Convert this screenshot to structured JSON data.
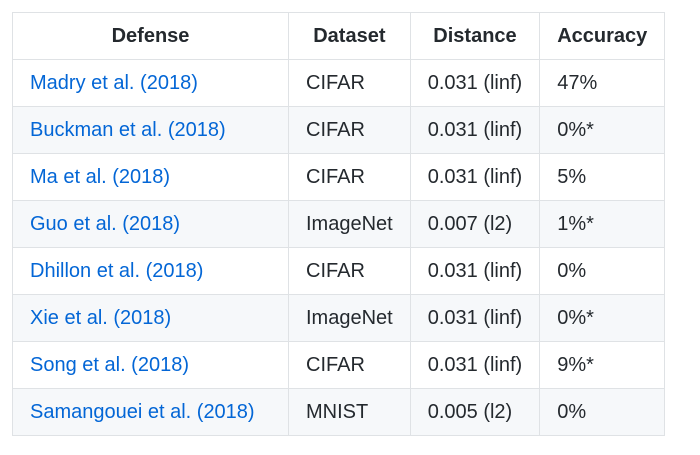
{
  "table": {
    "headers": {
      "defense": "Defense",
      "dataset": "Dataset",
      "distance": "Distance",
      "accuracy": "Accuracy"
    },
    "rows": [
      {
        "defense": "Madry et al. (2018)",
        "dataset": "CIFAR",
        "distance": "0.031 (linf)",
        "accuracy": "47%"
      },
      {
        "defense": "Buckman et al. (2018)",
        "dataset": "CIFAR",
        "distance": "0.031 (linf)",
        "accuracy": "0%*"
      },
      {
        "defense": "Ma et al. (2018)",
        "dataset": "CIFAR",
        "distance": "0.031 (linf)",
        "accuracy": "5%"
      },
      {
        "defense": "Guo et al. (2018)",
        "dataset": "ImageNet",
        "distance": "0.007 (l2)",
        "accuracy": "1%*"
      },
      {
        "defense": "Dhillon et al. (2018)",
        "dataset": "CIFAR",
        "distance": "0.031 (linf)",
        "accuracy": "0%"
      },
      {
        "defense": "Xie et al. (2018)",
        "dataset": "ImageNet",
        "distance": "0.031 (linf)",
        "accuracy": "0%*"
      },
      {
        "defense": "Song et al. (2018)",
        "dataset": "CIFAR",
        "distance": "0.031 (linf)",
        "accuracy": "9%*"
      },
      {
        "defense": "Samangouei et al. (2018)",
        "dataset": "MNIST",
        "distance": "0.005 (l2)",
        "accuracy": "0%"
      }
    ]
  },
  "colors": {
    "link": "#0366d6",
    "text": "#24292e",
    "border": "#dfe2e5",
    "stripe": "#f6f8fa"
  }
}
